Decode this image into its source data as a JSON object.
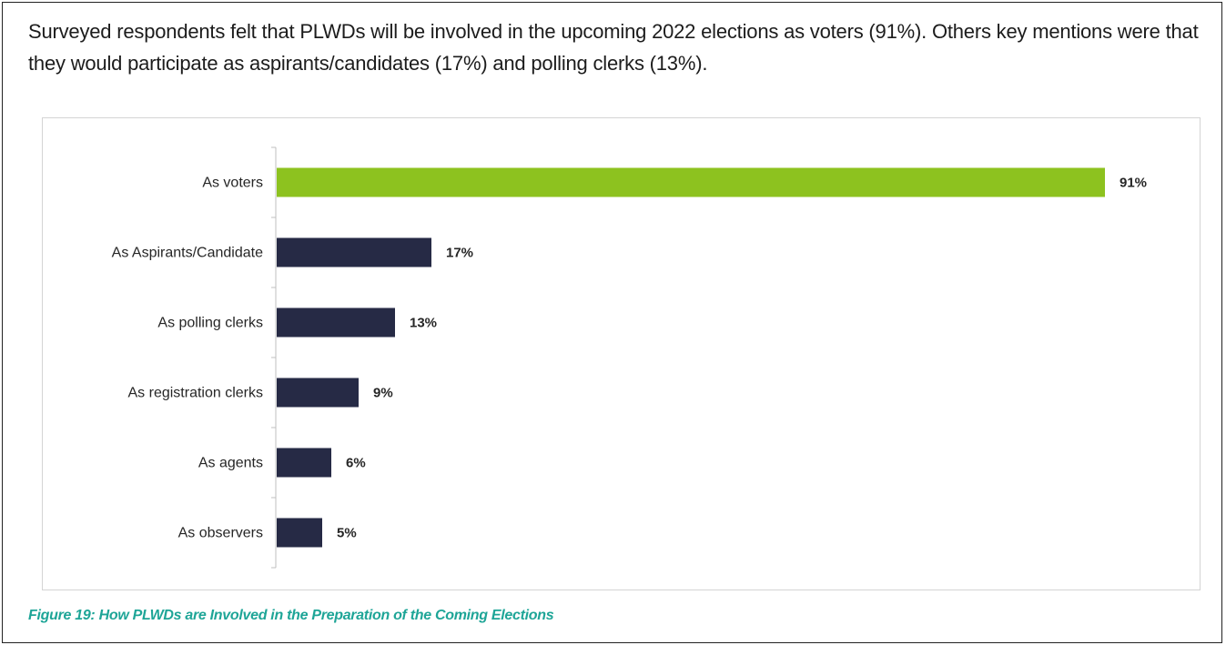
{
  "intro_text": "Surveyed respondents felt that PLWDs will be involved in the upcoming 2022 elections as voters (91%). Others key mentions were that they would participate as aspirants/candidates (17%) and polling clerks (13%).",
  "caption": "Figure 19: How PLWDs are Involved in the Preparation of the Coming Elections",
  "colors": {
    "highlight_bar": "#8dc21f",
    "bar": "#262a45",
    "caption": "#1ea597"
  },
  "chart_data": {
    "type": "bar",
    "orientation": "horizontal",
    "categories": [
      "As voters",
      "As Aspirants/Candidate",
      "As polling clerks",
      "As registration clerks",
      "As agents",
      "As observers"
    ],
    "values": [
      91,
      17,
      13,
      9,
      6,
      5
    ],
    "value_labels": [
      "91%",
      "17%",
      "13%",
      "9%",
      "6%",
      "5%"
    ],
    "unit": "%",
    "xlim": [
      0,
      100
    ],
    "highlight_index": 0,
    "grid": false,
    "legend": "none"
  }
}
